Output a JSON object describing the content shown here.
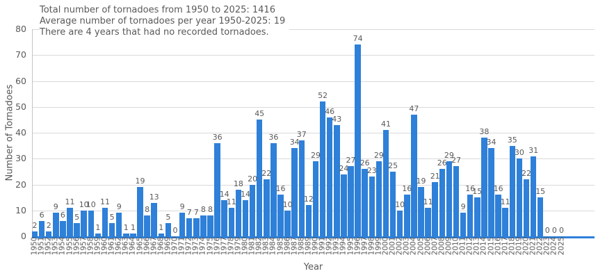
{
  "chart_data": {
    "type": "bar",
    "annotations": [
      "Total number of tornadoes from 1950 to 2025: 1416",
      "Average number of tornadoes per year 1950-2025: 19",
      "There are 4 years that had no recorded tornadoes."
    ],
    "xlabel": "Year",
    "ylabel": "Number of Tornadoes",
    "ylim": [
      0,
      80
    ],
    "yticks": [
      0,
      10,
      20,
      30,
      40,
      50,
      60,
      70,
      80
    ],
    "grid": true,
    "legend": null,
    "bar_labels_shown": true,
    "colors": {
      "bar": "#2e80d8",
      "grid": "#d9d9d9",
      "spine": "#c3c3c3",
      "text": "#595959",
      "background": "#ffffff"
    },
    "categories": [
      1950,
      1951,
      1952,
      1953,
      1954,
      1955,
      1956,
      1957,
      1958,
      1959,
      1960,
      1961,
      1962,
      1963,
      1964,
      1965,
      1966,
      1967,
      1968,
      1969,
      1970,
      1971,
      1972,
      1973,
      1974,
      1975,
      1976,
      1977,
      1978,
      1979,
      1980,
      1981,
      1982,
      1983,
      1984,
      1985,
      1986,
      1987,
      1988,
      1989,
      1990,
      1991,
      1992,
      1993,
      1994,
      1995,
      1996,
      1997,
      1998,
      1999,
      2000,
      2001,
      2002,
      2003,
      2004,
      2005,
      2006,
      2007,
      2008,
      2009,
      2010,
      2011,
      2012,
      2013,
      2014,
      2015,
      2016,
      2017,
      2018,
      2019,
      2020,
      2021,
      2022,
      2023,
      2024,
      2025
    ],
    "values": [
      2,
      6,
      2,
      9,
      6,
      11,
      5,
      10,
      10,
      1,
      11,
      5,
      9,
      1,
      1,
      19,
      8,
      13,
      1,
      5,
      0,
      9,
      7,
      7,
      8,
      8,
      36,
      14,
      11,
      18,
      14,
      20,
      45,
      22,
      36,
      16,
      10,
      34,
      37,
      12,
      29,
      52,
      46,
      43,
      24,
      27,
      74,
      26,
      23,
      29,
      41,
      25,
      10,
      16,
      47,
      19,
      11,
      21,
      26,
      29,
      27,
      9,
      16,
      15,
      38,
      34,
      16,
      11,
      35,
      30,
      22,
      31,
      15,
      0,
      0,
      0
    ]
  }
}
